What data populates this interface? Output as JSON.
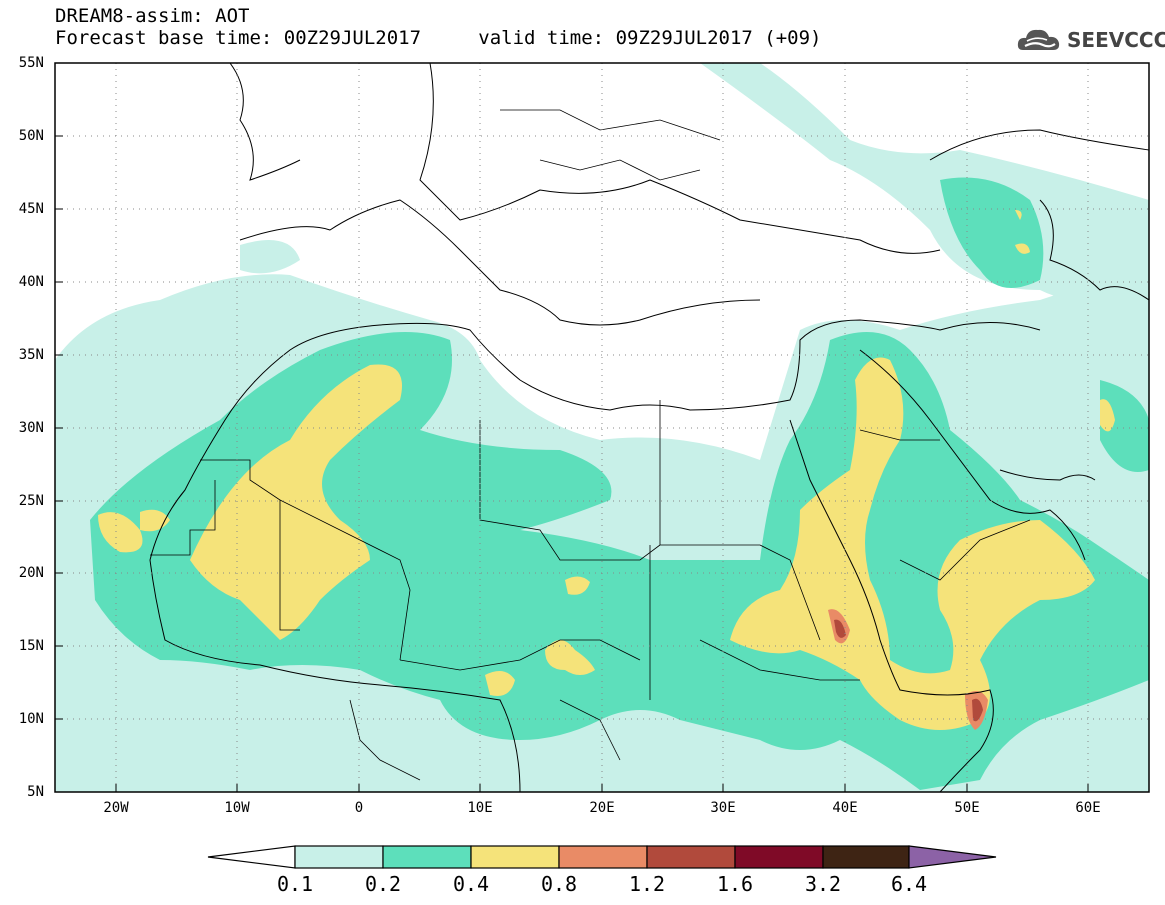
{
  "header": {
    "title_line1": "DREAM8-assim: AOT",
    "forecast_label": "Forecast base time:",
    "forecast_time": "00Z29JUL2017",
    "valid_label": "valid time:",
    "valid_time": "09Z29JUL2017 (+09)"
  },
  "logo": {
    "text": "SEEVCCC",
    "icon": "cloud-logo-icon"
  },
  "map": {
    "lat_range": [
      5,
      55
    ],
    "lon_range": [
      -25,
      65
    ],
    "lat_ticks": [
      "55N",
      "50N",
      "45N",
      "40N",
      "35N",
      "30N",
      "25N",
      "20N",
      "15N",
      "10N",
      "5N"
    ],
    "lon_ticks": [
      "20W",
      "10W",
      "0",
      "10E",
      "20E",
      "30E",
      "40E",
      "50E",
      "60E"
    ],
    "grid": "dotted"
  },
  "colorbar": {
    "labels": [
      "0.1",
      "0.2",
      "0.4",
      "0.8",
      "1.2",
      "1.6",
      "3.2",
      "6.4"
    ],
    "colors": [
      "#c8f0e8",
      "#5ddfbb",
      "#f5e37a",
      "#e98b66",
      "#b14a3c",
      "#7f0a27",
      "#3e2414",
      "#8c62a6"
    ],
    "min_color": "#ffffff"
  },
  "colors": {
    "level1": "#c8f0e8",
    "level2": "#5ddfbb",
    "level3": "#f5e37a",
    "level4": "#e98b66",
    "level5": "#b14a3c"
  }
}
